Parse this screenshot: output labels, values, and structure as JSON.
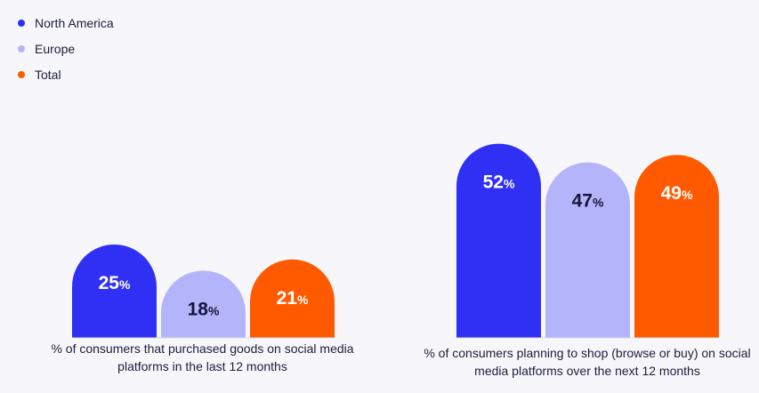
{
  "legend": [
    {
      "label": "North America",
      "color": "#3030f5"
    },
    {
      "label": "Europe",
      "color": "#b4b4fa"
    },
    {
      "label": "Total",
      "color": "#ff5a00"
    }
  ],
  "chart_data": {
    "type": "bar",
    "categories": [
      "% of consumers that purchased goods on social media platforms in the last 12 months",
      "% of consumers planning to shop (browse or buy) on social media platforms over the next 12 months"
    ],
    "series": [
      {
        "name": "North America",
        "color": "#3030f5",
        "values": [
          25,
          52
        ]
      },
      {
        "name": "Europe",
        "color": "#b4b4fa",
        "values": [
          18,
          47
        ]
      },
      {
        "name": "Total",
        "color": "#ff5a00",
        "values": [
          21,
          49
        ]
      }
    ],
    "value_suffix": "%",
    "ylim": [
      0,
      100
    ],
    "title": "",
    "xlabel": "",
    "ylabel": ""
  }
}
